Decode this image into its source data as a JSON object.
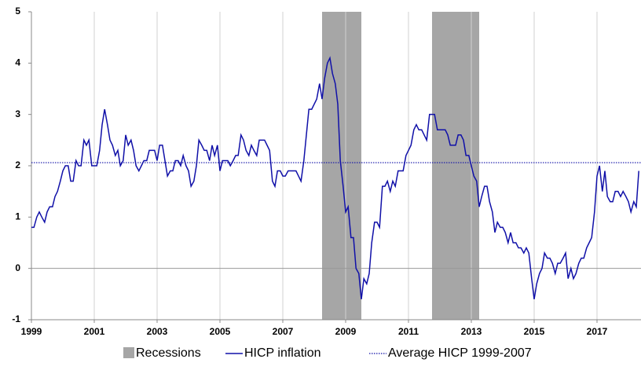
{
  "chart_data": {
    "type": "line",
    "xlim": [
      1999,
      2018.4
    ],
    "xticks": [
      1999,
      2001,
      2003,
      2005,
      2007,
      2009,
      2011,
      2013,
      2015,
      2017
    ],
    "ylim": [
      -1,
      5
    ],
    "yticks": [
      -1,
      0,
      1,
      2,
      3,
      4,
      5
    ],
    "grid": true,
    "x": [
      1999,
      1999.08,
      1999.17,
      1999.25,
      1999.33,
      1999.42,
      1999.5,
      1999.58,
      1999.67,
      1999.75,
      1999.83,
      1999.92,
      2000,
      2000.08,
      2000.17,
      2000.25,
      2000.33,
      2000.42,
      2000.5,
      2000.58,
      2000.67,
      2000.75,
      2000.83,
      2000.92,
      2001,
      2001.08,
      2001.17,
      2001.25,
      2001.33,
      2001.42,
      2001.5,
      2001.58,
      2001.67,
      2001.75,
      2001.83,
      2001.92,
      2002,
      2002.08,
      2002.17,
      2002.25,
      2002.33,
      2002.42,
      2002.5,
      2002.58,
      2002.67,
      2002.75,
      2002.83,
      2002.92,
      2003,
      2003.08,
      2003.17,
      2003.25,
      2003.33,
      2003.42,
      2003.5,
      2003.58,
      2003.67,
      2003.75,
      2003.83,
      2003.92,
      2004,
      2004.08,
      2004.17,
      2004.25,
      2004.33,
      2004.42,
      2004.5,
      2004.58,
      2004.67,
      2004.75,
      2004.83,
      2004.92,
      2005,
      2005.08,
      2005.17,
      2005.25,
      2005.33,
      2005.42,
      2005.5,
      2005.58,
      2005.67,
      2005.75,
      2005.83,
      2005.92,
      2006,
      2006.08,
      2006.17,
      2006.25,
      2006.33,
      2006.42,
      2006.5,
      2006.58,
      2006.67,
      2006.75,
      2006.83,
      2006.92,
      2007,
      2007.08,
      2007.17,
      2007.25,
      2007.33,
      2007.42,
      2007.5,
      2007.58,
      2007.67,
      2007.75,
      2007.83,
      2007.92,
      2008,
      2008.08,
      2008.17,
      2008.25,
      2008.33,
      2008.42,
      2008.5,
      2008.58,
      2008.67,
      2008.75,
      2008.83,
      2008.92,
      2009,
      2009.08,
      2009.17,
      2009.25,
      2009.33,
      2009.42,
      2009.5,
      2009.58,
      2009.67,
      2009.75,
      2009.83,
      2009.92,
      2010,
      2010.08,
      2010.17,
      2010.25,
      2010.33,
      2010.42,
      2010.5,
      2010.58,
      2010.67,
      2010.75,
      2010.83,
      2010.92,
      2011,
      2011.08,
      2011.17,
      2011.25,
      2011.33,
      2011.42,
      2011.5,
      2011.58,
      2011.67,
      2011.75,
      2011.83,
      2011.92,
      2012,
      2012.08,
      2012.17,
      2012.25,
      2012.33,
      2012.42,
      2012.5,
      2012.58,
      2012.67,
      2012.75,
      2012.83,
      2012.92,
      2013,
      2013.08,
      2013.17,
      2013.25,
      2013.33,
      2013.42,
      2013.5,
      2013.58,
      2013.67,
      2013.75,
      2013.83,
      2013.92,
      2014,
      2014.08,
      2014.17,
      2014.25,
      2014.33,
      2014.42,
      2014.5,
      2014.58,
      2014.67,
      2014.75,
      2014.83,
      2014.92,
      2015,
      2015.08,
      2015.17,
      2015.25,
      2015.33,
      2015.42,
      2015.5,
      2015.58,
      2015.67,
      2015.75,
      2015.83,
      2015.92,
      2016,
      2016.08,
      2016.17,
      2016.25,
      2016.33,
      2016.42,
      2016.5,
      2016.58,
      2016.67,
      2016.75,
      2016.83,
      2016.92,
      2017,
      2017.08,
      2017.17,
      2017.25,
      2017.33,
      2017.42,
      2017.5,
      2017.58,
      2017.67,
      2017.75,
      2017.83,
      2017.92,
      2018,
      2018.08,
      2018.17,
      2018.25,
      2018.33
    ],
    "series": [
      {
        "name": "HICP inflation",
        "color": "#1010a8",
        "values": [
          0.8,
          0.8,
          1.0,
          1.1,
          1.0,
          0.9,
          1.1,
          1.2,
          1.2,
          1.4,
          1.5,
          1.7,
          1.9,
          2.0,
          2.0,
          1.7,
          1.7,
          2.1,
          2.0,
          2.0,
          2.5,
          2.4,
          2.5,
          2.0,
          2.0,
          2.0,
          2.3,
          2.8,
          3.1,
          2.8,
          2.5,
          2.4,
          2.2,
          2.3,
          2.0,
          2.1,
          2.6,
          2.4,
          2.5,
          2.3,
          2.0,
          1.9,
          2.0,
          2.1,
          2.1,
          2.3,
          2.3,
          2.3,
          2.1,
          2.4,
          2.4,
          2.1,
          1.8,
          1.9,
          1.9,
          2.1,
          2.1,
          2.0,
          2.2,
          2.0,
          1.9,
          1.6,
          1.7,
          2.0,
          2.5,
          2.4,
          2.3,
          2.3,
          2.1,
          2.4,
          2.2,
          2.4,
          1.9,
          2.1,
          2.1,
          2.1,
          2.0,
          2.1,
          2.2,
          2.2,
          2.6,
          2.5,
          2.3,
          2.2,
          2.4,
          2.3,
          2.2,
          2.5,
          2.5,
          2.5,
          2.4,
          2.3,
          1.7,
          1.6,
          1.9,
          1.9,
          1.8,
          1.8,
          1.9,
          1.9,
          1.9,
          1.9,
          1.8,
          1.7,
          2.1,
          2.6,
          3.1,
          3.1,
          3.2,
          3.3,
          3.6,
          3.3,
          3.7,
          4.0,
          4.1,
          3.8,
          3.6,
          3.2,
          2.1,
          1.6,
          1.1,
          1.2,
          0.6,
          0.6,
          0.0,
          -0.1,
          -0.6,
          -0.2,
          -0.3,
          -0.1,
          0.5,
          0.9,
          0.9,
          0.8,
          1.6,
          1.6,
          1.7,
          1.5,
          1.7,
          1.6,
          1.9,
          1.9,
          1.9,
          2.2,
          2.3,
          2.4,
          2.7,
          2.8,
          2.7,
          2.7,
          2.6,
          2.5,
          3.0,
          3.0,
          3.0,
          2.7,
          2.7,
          2.7,
          2.7,
          2.6,
          2.4,
          2.4,
          2.4,
          2.6,
          2.6,
          2.5,
          2.2,
          2.2,
          2.0,
          1.8,
          1.7,
          1.2,
          1.4,
          1.6,
          1.6,
          1.3,
          1.1,
          0.7,
          0.9,
          0.8,
          0.8,
          0.7,
          0.5,
          0.7,
          0.5,
          0.5,
          0.4,
          0.4,
          0.3,
          0.4,
          0.3,
          -0.2,
          -0.6,
          -0.3,
          -0.1,
          0.0,
          0.3,
          0.2,
          0.2,
          0.1,
          -0.1,
          0.1,
          0.1,
          0.2,
          0.3,
          -0.2,
          0.0,
          -0.2,
          -0.1,
          0.1,
          0.2,
          0.2,
          0.4,
          0.5,
          0.6,
          1.1,
          1.8,
          2.0,
          1.5,
          1.9,
          1.4,
          1.3,
          1.3,
          1.5,
          1.5,
          1.4,
          1.5,
          1.4,
          1.3,
          1.1,
          1.3,
          1.2,
          1.9
        ]
      }
    ],
    "recessions": {
      "name": "Recessions",
      "color": "#a6a6a6",
      "periods": [
        {
          "start": 2008.25,
          "end": 2009.5
        },
        {
          "start": 2011.75,
          "end": 2013.25
        }
      ]
    },
    "average": {
      "name": "Average HICP 1999-2007",
      "color": "#1010a8",
      "value": 2.06
    }
  }
}
